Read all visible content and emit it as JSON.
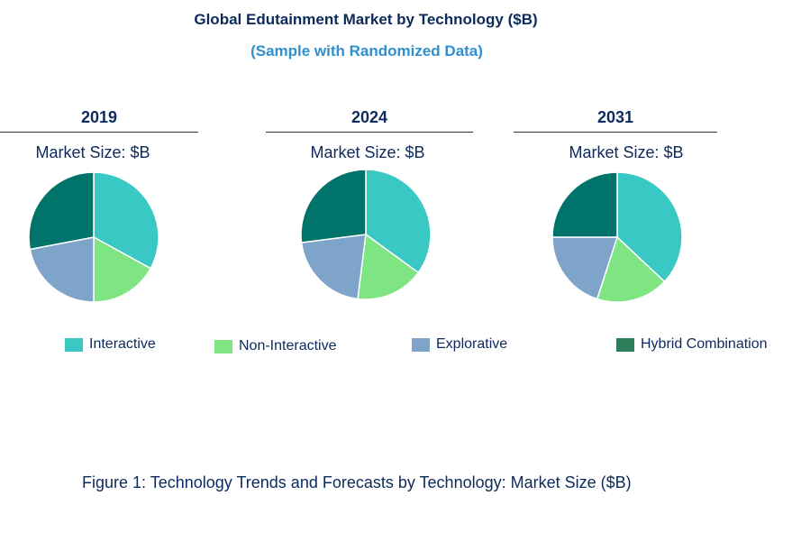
{
  "title": "Global Edutainment Market by Technology ($B)",
  "subtitle": "(Sample with Randomized Data)",
  "caption": "Figure 1: Technology Trends and Forecasts by Technology: Market Size ($B)",
  "colors": {
    "Interactive": "#39c8c4",
    "Non-Interactive": "#7ee582",
    "Explorative": "#7fa4ca",
    "Hybrid Combination": "#00736b",
    "Hybrid Combination legend": "#2e7d5b"
  },
  "chart_data": [
    {
      "type": "pie",
      "title": "2019",
      "subtitle": "Market Size: $B",
      "categories": [
        "Interactive",
        "Non-Interactive",
        "Explorative",
        "Hybrid Combination"
      ],
      "values": [
        33,
        17,
        22,
        28
      ]
    },
    {
      "type": "pie",
      "title": "2024",
      "subtitle": "Market Size: $B",
      "categories": [
        "Interactive",
        "Non-Interactive",
        "Explorative",
        "Hybrid Combination"
      ],
      "values": [
        35,
        17,
        21,
        27
      ]
    },
    {
      "type": "pie",
      "title": "2031",
      "subtitle": "Market Size: $B",
      "categories": [
        "Interactive",
        "Non-Interactive",
        "Explorative",
        "Hybrid Combination"
      ],
      "values": [
        37,
        18,
        20,
        25
      ]
    }
  ],
  "legend": {
    "position": "bottom",
    "items": [
      "Interactive",
      "Non-Interactive",
      "Explorative",
      "Hybrid Combination"
    ]
  }
}
